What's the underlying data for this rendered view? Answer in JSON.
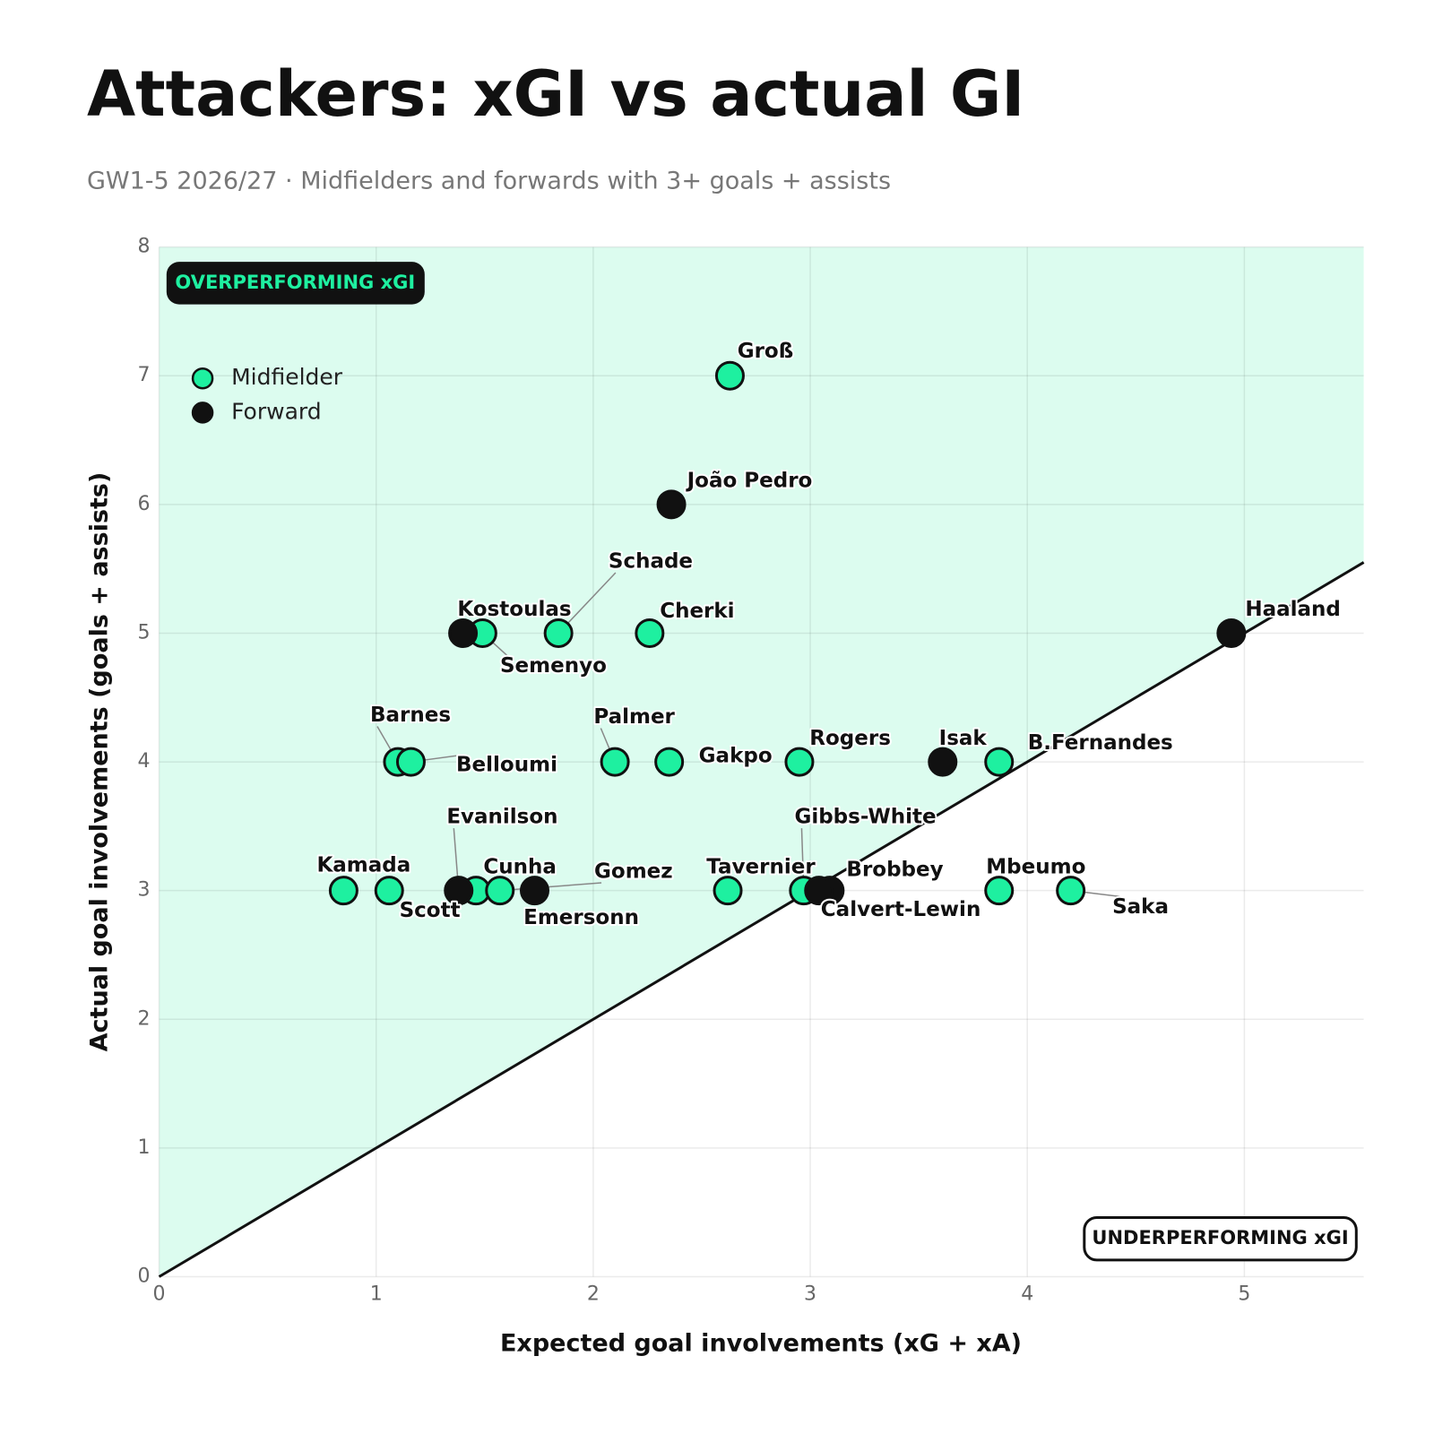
{
  "chart_data": {
    "type": "scatter",
    "title": "Attackers: xGI vs actual GI",
    "subtitle": "GW1-5 2026/27 · Midfielders and forwards with 3+ goals + assists",
    "x_label": "Expected goal involvements (xG + xA)",
    "y_label": "Actual goal involvements (goals + assists)",
    "xlim": [
      0,
      5.55
    ],
    "ylim": [
      0,
      8
    ],
    "xticks": [
      0,
      1,
      2,
      3,
      4,
      5
    ],
    "yticks": [
      0,
      1,
      2,
      3,
      4,
      5,
      6,
      7,
      8
    ],
    "grid": true,
    "annotations": [
      "OVERPERFORMING xGI",
      "UNDERPERFORMING xGI"
    ],
    "series": [
      {
        "name": "Midfielder",
        "color": "#1ef0a0",
        "labels": [
          "Groß",
          "Schade",
          "Semenyo",
          "Cherki",
          "Barnes",
          "Belloumi",
          "Palmer",
          "Gakpo",
          "Rogers",
          "B.Fernandes",
          "Kamada",
          "Scott",
          "Cunha",
          "Gomez",
          "Tavernier",
          "Gibbs-White",
          "Mbeumo",
          "Saka"
        ],
        "x": [
          2.63,
          1.84,
          1.49,
          2.26,
          1.1,
          1.16,
          2.1,
          2.35,
          2.95,
          3.87,
          0.85,
          1.06,
          1.46,
          1.57,
          2.62,
          2.97,
          3.87,
          4.2
        ],
        "values": [
          7,
          5,
          5,
          5,
          4,
          4,
          4,
          4,
          4,
          4,
          3,
          3,
          3,
          3,
          3,
          3,
          3,
          3
        ]
      },
      {
        "name": "Forward",
        "color": "#111111",
        "labels": [
          "João Pedro",
          "Kostoulas",
          "Haaland",
          "Isak",
          "Evanilson",
          "Emersonn",
          "Brobbey",
          "Calvert-Lewin"
        ],
        "x": [
          2.36,
          1.4,
          4.94,
          3.61,
          1.38,
          1.73,
          3.09,
          3.04
        ],
        "values": [
          6,
          5,
          5,
          4,
          3,
          3,
          3,
          3
        ]
      }
    ]
  }
}
